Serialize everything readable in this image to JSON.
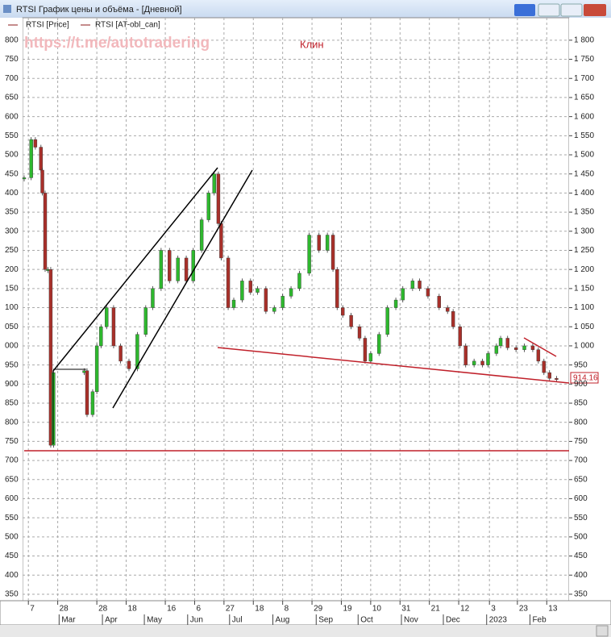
{
  "window_title": "RTSI График цены и объёма - [Дневной]",
  "chart_data": {
    "type": "candlestick",
    "indicator_legend": "RTSI [AT-obl_can]",
    "annotation": "Клин",
    "watermark": "https://t.me/autotradering",
    "x": [
      -3,
      2,
      5,
      9,
      10,
      12,
      14,
      16,
      18,
      40,
      42,
      46,
      49,
      52,
      56,
      61,
      66,
      72,
      78,
      84,
      89,
      95,
      101,
      107,
      113,
      118,
      124,
      129,
      133,
      136,
      138,
      143,
      147,
      153,
      159,
      164,
      170,
      176,
      182,
      188,
      194,
      201,
      208,
      214,
      218,
      221,
      225,
      231,
      237,
      241,
      245,
      251,
      257,
      263,
      268,
      275,
      280,
      286,
      294,
      300,
      304,
      309,
      313,
      319,
      325,
      329,
      335,
      338,
      343,
      349,
      355,
      361,
      365,
      369,
      373,
      378
    ],
    "series": [
      {
        "name": "RTSI [Price]",
        "color": "#2eb82e",
        "down_color": "#a8302a",
        "values": [
          1440,
          1540,
          1520,
          1460,
          1400,
          1200,
          1200,
          740,
          930,
          935,
          820,
          880,
          1000,
          1050,
          1100,
          1000,
          960,
          940,
          1030,
          1100,
          1150,
          1250,
          1170,
          1230,
          1170,
          1250,
          1330,
          1400,
          1450,
          1320,
          1230,
          1100,
          1120,
          1170,
          1140,
          1150,
          1090,
          1100,
          1130,
          1150,
          1190,
          1290,
          1250,
          1290,
          1200,
          1100,
          1080,
          1050,
          1020,
          960,
          980,
          1030,
          1100,
          1120,
          1150,
          1170,
          1150,
          1130,
          1100,
          1090,
          1050,
          1000,
          950,
          960,
          950,
          980,
          1000,
          1020,
          995,
          990,
          1000,
          990,
          960,
          930,
          915,
          914.16
        ]
      }
    ],
    "xlim": [
      -3,
      387
    ],
    "xticks": [
      {
        "value": 0,
        "label": "7"
      },
      {
        "value": 21,
        "label": "28"
      },
      {
        "value": 49,
        "label": "28"
      },
      {
        "value": 70,
        "label": "18"
      },
      {
        "value": 98,
        "label": "16"
      },
      {
        "value": 119,
        "label": "6"
      },
      {
        "value": 140,
        "label": "27"
      },
      {
        "value": 161,
        "label": "18"
      },
      {
        "value": 182,
        "label": "8"
      },
      {
        "value": 203,
        "label": "29"
      },
      {
        "value": 224,
        "label": "19"
      },
      {
        "value": 245,
        "label": "10"
      },
      {
        "value": 266,
        "label": "31"
      },
      {
        "value": 287,
        "label": "21"
      },
      {
        "value": 308,
        "label": "12"
      },
      {
        "value": 330,
        "label": "3"
      },
      {
        "value": 350,
        "label": "23"
      },
      {
        "value": 371,
        "label": "13"
      }
    ],
    "xmonth_ticks": [
      {
        "value": 22,
        "label": "Mar"
      },
      {
        "value": 53,
        "label": "Apr"
      },
      {
        "value": 83,
        "label": "May"
      },
      {
        "value": 114,
        "label": "Jun"
      },
      {
        "value": 144,
        "label": "Jul"
      },
      {
        "value": 175,
        "label": "Aug"
      },
      {
        "value": 206,
        "label": "Sep"
      },
      {
        "value": 236,
        "label": "Oct"
      },
      {
        "value": 267,
        "label": "Nov"
      },
      {
        "value": 297,
        "label": "Dec"
      },
      {
        "value": 328,
        "label": "2023"
      },
      {
        "value": 359,
        "label": "Feb"
      }
    ],
    "ylim": [
      333,
      1863
    ],
    "yticks": [
      {
        "value": 1800,
        "label": "800"
      },
      {
        "value": 1750,
        "label": "750"
      },
      {
        "value": 1700,
        "label": "700"
      },
      {
        "value": 1650,
        "label": "650"
      },
      {
        "value": 1600,
        "label": "600"
      },
      {
        "value": 1550,
        "label": "550"
      },
      {
        "value": 1500,
        "label": "500"
      },
      {
        "value": 1450,
        "label": "450"
      },
      {
        "value": 1400,
        "label": "400"
      },
      {
        "value": 1350,
        "label": "350"
      },
      {
        "value": 1300,
        "label": "300"
      },
      {
        "value": 1250,
        "label": "250"
      },
      {
        "value": 1200,
        "label": "200"
      },
      {
        "value": 1150,
        "label": "150"
      },
      {
        "value": 1100,
        "label": "100"
      },
      {
        "value": 1050,
        "label": "050"
      },
      {
        "value": 1000,
        "label": "000"
      },
      950,
      900,
      850,
      800,
      750,
      700,
      650,
      600,
      550,
      500,
      450,
      400,
      350
    ],
    "y2lim": [
      333,
      1863
    ],
    "y2ticks": [
      {
        "value": 1800,
        "label": "1 800"
      },
      {
        "value": 1750,
        "label": "1 750"
      },
      {
        "value": 1700,
        "label": "1 700"
      },
      {
        "value": 1650,
        "label": "1 650"
      },
      {
        "value": 1600,
        "label": "1 600"
      },
      {
        "value": 1550,
        "label": "1 550"
      },
      {
        "value": 1500,
        "label": "1 500"
      },
      {
        "value": 1450,
        "label": "1 450"
      },
      {
        "value": 1400,
        "label": "1 400"
      },
      {
        "value": 1350,
        "label": "1 350"
      },
      {
        "value": 1300,
        "label": "1 300"
      },
      {
        "value": 1250,
        "label": "1 250"
      },
      {
        "value": 1200,
        "label": "1 200"
      },
      {
        "value": 1150,
        "label": "1 150"
      },
      {
        "value": 1100,
        "label": "1 100"
      },
      {
        "value": 1050,
        "label": "1 050"
      },
      {
        "value": 1000,
        "label": "1 000"
      },
      950,
      900,
      850,
      800,
      750,
      700,
      650,
      600,
      550,
      500,
      450,
      400,
      350
    ],
    "grid": true
  }
}
